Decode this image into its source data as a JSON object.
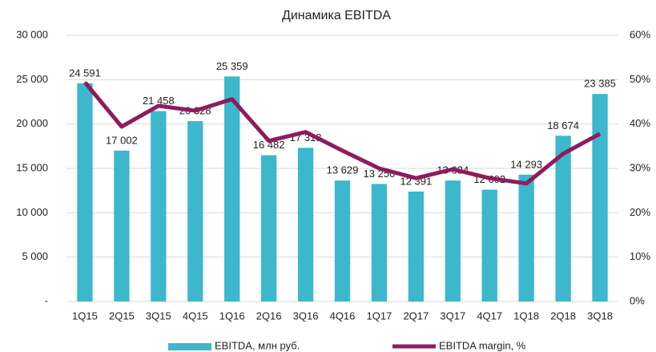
{
  "chart_data": {
    "type": "bar_line",
    "title": "Динамика EBITDA",
    "categories": [
      "1Q15",
      "2Q15",
      "3Q15",
      "4Q15",
      "1Q16",
      "2Q16",
      "3Q16",
      "4Q16",
      "1Q17",
      "2Q17",
      "3Q17",
      "4Q17",
      "1Q18",
      "2Q18",
      "3Q18"
    ],
    "series": [
      {
        "name": "EBITDA, млн руб.",
        "color": "#3cb7cc",
        "type": "bar",
        "values": [
          24591,
          17002,
          21458,
          20328,
          25359,
          16482,
          17318,
          13629,
          13250,
          12391,
          13634,
          12602,
          14293,
          18674,
          23385
        ],
        "value_labels": [
          "24 591",
          "17 002",
          "21 458",
          "20 328",
          "25 359",
          "16 482",
          "17 318",
          "13 629",
          "13 250",
          "12 391",
          "13 634",
          "12 602",
          "14 293",
          "18 674",
          "23 385"
        ]
      },
      {
        "name": "EBITDA margin, %",
        "color": "#8e1c5c",
        "type": "line",
        "axis": "y2",
        "values": [
          49.4,
          39.4,
          44.1,
          43,
          45.6,
          36.2,
          38.2,
          34,
          30,
          27.8,
          29.8,
          27.8,
          26.6,
          33.3,
          37.8
        ]
      }
    ],
    "ylim": [
      0,
      30000
    ],
    "yticks": [
      {
        "value": 0,
        "label": "-"
      },
      {
        "value": 5000,
        "label": "5 000"
      },
      {
        "value": 10000,
        "label": "10 000"
      },
      {
        "value": 15000,
        "label": "15 000"
      },
      {
        "value": 20000,
        "label": "20 000"
      },
      {
        "value": 25000,
        "label": "25 000"
      },
      {
        "value": 30000,
        "label": "30 000"
      }
    ],
    "y2lim": [
      0,
      60
    ],
    "y2ticks": [
      {
        "value": 0,
        "label": "0%"
      },
      {
        "value": 10,
        "label": "10%"
      },
      {
        "value": 20,
        "label": "20%"
      },
      {
        "value": 30,
        "label": "30%"
      },
      {
        "value": 40,
        "label": "40%"
      },
      {
        "value": 50,
        "label": "50%"
      },
      {
        "value": 60,
        "label": "60%"
      }
    ],
    "grid": true,
    "legend": "bottom"
  }
}
